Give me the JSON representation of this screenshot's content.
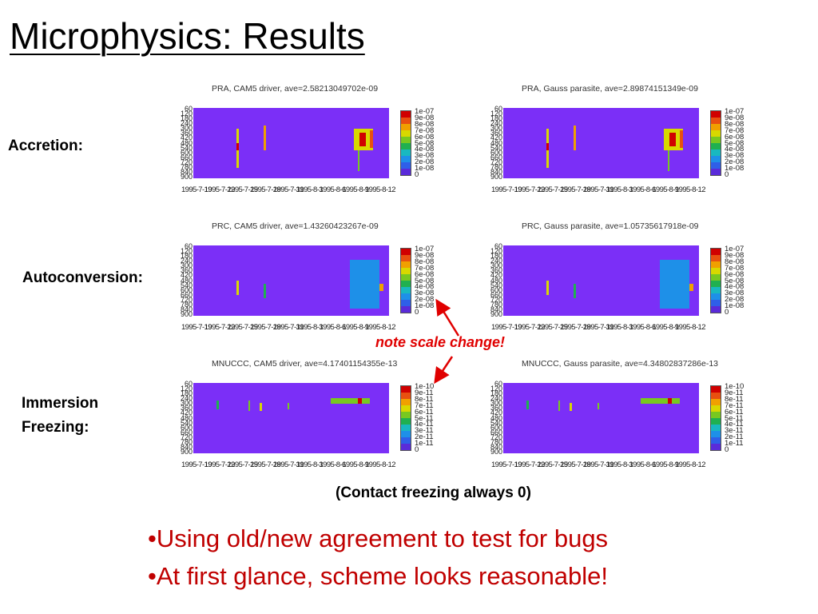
{
  "slide": {
    "title": "Microphysics: Results",
    "row_labels": [
      "Accretion:",
      "Autoconversion:",
      "Immersion",
      "Freezing:"
    ],
    "note": "note scale change!",
    "caption": "(Contact freezing always 0)",
    "bullets": [
      "•Using old/new agreement to test for bugs",
      "•At first glance, scheme looks reasonable!"
    ],
    "colors": {
      "accent": "#e00000",
      "bullet": "#c00000",
      "plot_background": "#7b2ff7"
    },
    "colormap": [
      "#5a2bd9",
      "#2f5fe8",
      "#1e90e8",
      "#19b8c0",
      "#20b050",
      "#78c820",
      "#d8d800",
      "#f0a000",
      "#e85010",
      "#d00000"
    ]
  },
  "chart_data": [
    {
      "type": "heatmap",
      "title": "PRA, CAM5 driver, ave=2.58213049702e-09",
      "y_tick_labels": [
        "60",
        "120",
        "180",
        "240",
        "300",
        "360",
        "420",
        "480",
        "540",
        "600",
        "660",
        "720",
        "780",
        "840",
        "900"
      ],
      "x_tick_labels": [
        "1995-7-19",
        "1995-7-22",
        "1995-7-25",
        "1995-7-28",
        "1995-7-31",
        "1995-8-3",
        "1995-8-6",
        "1995-8-9",
        "1995-8-12"
      ],
      "colorbar_labels": [
        "1e-07",
        "9e-08",
        "8e-08",
        "7e-08",
        "6e-08",
        "5e-08",
        "4e-08",
        "3e-08",
        "2e-08",
        "1e-08",
        "0"
      ],
      "hotspots": [
        {
          "x": 0.22,
          "y": 0.3,
          "w": 0.012,
          "h": 0.55,
          "level": 6
        },
        {
          "x": 0.22,
          "y": 0.5,
          "w": 0.012,
          "h": 0.1,
          "level": 9
        },
        {
          "x": 0.36,
          "y": 0.25,
          "w": 0.01,
          "h": 0.35,
          "level": 7
        },
        {
          "x": 0.82,
          "y": 0.3,
          "w": 0.1,
          "h": 0.3,
          "level": 6
        },
        {
          "x": 0.85,
          "y": 0.35,
          "w": 0.03,
          "h": 0.2,
          "level": 9
        },
        {
          "x": 0.9,
          "y": 0.32,
          "w": 0.02,
          "h": 0.25,
          "level": 8
        },
        {
          "x": 0.84,
          "y": 0.6,
          "w": 0.01,
          "h": 0.3,
          "level": 5
        }
      ]
    },
    {
      "type": "heatmap",
      "title": "PRA, Gauss parasite, ave=2.89874151349e-09",
      "y_tick_labels": [
        "60",
        "120",
        "180",
        "240",
        "300",
        "360",
        "420",
        "480",
        "540",
        "600",
        "660",
        "720",
        "780",
        "840",
        "900"
      ],
      "x_tick_labels": [
        "1995-7-19",
        "1995-7-22",
        "1995-7-25",
        "1995-7-28",
        "1995-7-31",
        "1995-8-3",
        "1995-8-6",
        "1995-8-9",
        "1995-8-12"
      ],
      "colorbar_labels": [
        "1e-07",
        "9e-08",
        "8e-08",
        "7e-08",
        "6e-08",
        "5e-08",
        "4e-08",
        "3e-08",
        "2e-08",
        "1e-08",
        "0"
      ],
      "hotspots": [
        {
          "x": 0.22,
          "y": 0.3,
          "w": 0.012,
          "h": 0.55,
          "level": 6
        },
        {
          "x": 0.22,
          "y": 0.5,
          "w": 0.012,
          "h": 0.1,
          "level": 9
        },
        {
          "x": 0.36,
          "y": 0.25,
          "w": 0.01,
          "h": 0.35,
          "level": 7
        },
        {
          "x": 0.82,
          "y": 0.3,
          "w": 0.1,
          "h": 0.3,
          "level": 6
        },
        {
          "x": 0.85,
          "y": 0.35,
          "w": 0.03,
          "h": 0.2,
          "level": 9
        },
        {
          "x": 0.9,
          "y": 0.32,
          "w": 0.02,
          "h": 0.25,
          "level": 8
        },
        {
          "x": 0.84,
          "y": 0.6,
          "w": 0.01,
          "h": 0.3,
          "level": 5
        }
      ]
    },
    {
      "type": "heatmap",
      "title": "PRC, CAM5 driver, ave=1.43260423267e-09",
      "y_tick_labels": [
        "60",
        "120",
        "180",
        "240",
        "300",
        "360",
        "420",
        "480",
        "540",
        "600",
        "660",
        "720",
        "780",
        "840",
        "900"
      ],
      "x_tick_labels": [
        "1995-7-19",
        "1995-7-22",
        "1995-7-25",
        "1995-7-28",
        "1995-7-31",
        "1995-8-3",
        "1995-8-6",
        "1995-8-9",
        "1995-8-12"
      ],
      "colorbar_labels": [
        "1e-07",
        "9e-08",
        "8e-08",
        "7e-08",
        "6e-08",
        "5e-08",
        "4e-08",
        "3e-08",
        "2e-08",
        "1e-08",
        "0"
      ],
      "hotspots": [
        {
          "x": 0.22,
          "y": 0.5,
          "w": 0.012,
          "h": 0.2,
          "level": 6
        },
        {
          "x": 0.36,
          "y": 0.55,
          "w": 0.01,
          "h": 0.2,
          "level": 4
        },
        {
          "x": 0.82,
          "y": 0.55,
          "w": 0.15,
          "h": 0.1,
          "level": 7
        },
        {
          "x": 0.85,
          "y": 0.55,
          "w": 0.04,
          "h": 0.1,
          "level": 9
        },
        {
          "x": 0.8,
          "y": 0.2,
          "w": 0.15,
          "h": 0.7,
          "level": 2
        }
      ]
    },
    {
      "type": "heatmap",
      "title": "PRC, Gauss parasite, ave=1.05735617918e-09",
      "y_tick_labels": [
        "60",
        "120",
        "180",
        "240",
        "300",
        "360",
        "420",
        "480",
        "540",
        "600",
        "660",
        "720",
        "780",
        "840",
        "900"
      ],
      "x_tick_labels": [
        "1995-7-19",
        "1995-7-22",
        "1995-7-25",
        "1995-7-28",
        "1995-7-31",
        "1995-8-3",
        "1995-8-6",
        "1995-8-9",
        "1995-8-12"
      ],
      "colorbar_labels": [
        "1e-07",
        "9e-08",
        "8e-08",
        "7e-08",
        "6e-08",
        "5e-08",
        "4e-08",
        "3e-08",
        "2e-08",
        "1e-08",
        "0"
      ],
      "hotspots": [
        {
          "x": 0.22,
          "y": 0.5,
          "w": 0.012,
          "h": 0.2,
          "level": 6
        },
        {
          "x": 0.36,
          "y": 0.55,
          "w": 0.01,
          "h": 0.2,
          "level": 4
        },
        {
          "x": 0.82,
          "y": 0.55,
          "w": 0.15,
          "h": 0.1,
          "level": 7
        },
        {
          "x": 0.85,
          "y": 0.55,
          "w": 0.04,
          "h": 0.1,
          "level": 8
        },
        {
          "x": 0.8,
          "y": 0.2,
          "w": 0.15,
          "h": 0.7,
          "level": 2
        }
      ]
    },
    {
      "type": "heatmap",
      "title": "MNUCCC, CAM5 driver, ave=4.17401154355e-13",
      "y_tick_labels": [
        "60",
        "120",
        "180",
        "240",
        "300",
        "360",
        "420",
        "480",
        "540",
        "600",
        "660",
        "720",
        "780",
        "840",
        "900"
      ],
      "x_tick_labels": [
        "1995-7-19",
        "1995-7-22",
        "1995-7-25",
        "1995-7-28",
        "1995-7-31",
        "1995-8-3",
        "1995-8-6",
        "1995-8-9",
        "1995-8-12"
      ],
      "colorbar_labels": [
        "1e-10",
        "9e-11",
        "8e-11",
        "7e-11",
        "6e-11",
        "5e-11",
        "4e-11",
        "3e-11",
        "2e-11",
        "1e-11",
        "0"
      ],
      "hotspots": [
        {
          "x": 0.12,
          "y": 0.25,
          "w": 0.01,
          "h": 0.12,
          "level": 4
        },
        {
          "x": 0.28,
          "y": 0.25,
          "w": 0.01,
          "h": 0.15,
          "level": 5
        },
        {
          "x": 0.34,
          "y": 0.28,
          "w": 0.01,
          "h": 0.12,
          "level": 6
        },
        {
          "x": 0.48,
          "y": 0.28,
          "w": 0.01,
          "h": 0.1,
          "level": 5
        },
        {
          "x": 0.7,
          "y": 0.22,
          "w": 0.2,
          "h": 0.08,
          "level": 5
        },
        {
          "x": 0.84,
          "y": 0.22,
          "w": 0.02,
          "h": 0.08,
          "level": 9
        }
      ]
    },
    {
      "type": "heatmap",
      "title": "MNUCCC, Gauss parasite, ave=4.34802837286e-13",
      "y_tick_labels": [
        "60",
        "120",
        "180",
        "240",
        "300",
        "360",
        "420",
        "480",
        "540",
        "600",
        "660",
        "720",
        "780",
        "840",
        "900"
      ],
      "x_tick_labels": [
        "1995-7-19",
        "1995-7-22",
        "1995-7-25",
        "1995-7-28",
        "1995-7-31",
        "1995-8-3",
        "1995-8-6",
        "1995-8-9",
        "1995-8-12"
      ],
      "colorbar_labels": [
        "1e-10",
        "9e-11",
        "8e-11",
        "7e-11",
        "6e-11",
        "5e-11",
        "4e-11",
        "3e-11",
        "2e-11",
        "1e-11",
        "0"
      ],
      "hotspots": [
        {
          "x": 0.12,
          "y": 0.25,
          "w": 0.01,
          "h": 0.12,
          "level": 4
        },
        {
          "x": 0.28,
          "y": 0.25,
          "w": 0.01,
          "h": 0.15,
          "level": 5
        },
        {
          "x": 0.34,
          "y": 0.28,
          "w": 0.01,
          "h": 0.12,
          "level": 6
        },
        {
          "x": 0.48,
          "y": 0.28,
          "w": 0.01,
          "h": 0.1,
          "level": 5
        },
        {
          "x": 0.7,
          "y": 0.22,
          "w": 0.2,
          "h": 0.08,
          "level": 5
        },
        {
          "x": 0.84,
          "y": 0.22,
          "w": 0.02,
          "h": 0.08,
          "level": 9
        }
      ]
    }
  ]
}
